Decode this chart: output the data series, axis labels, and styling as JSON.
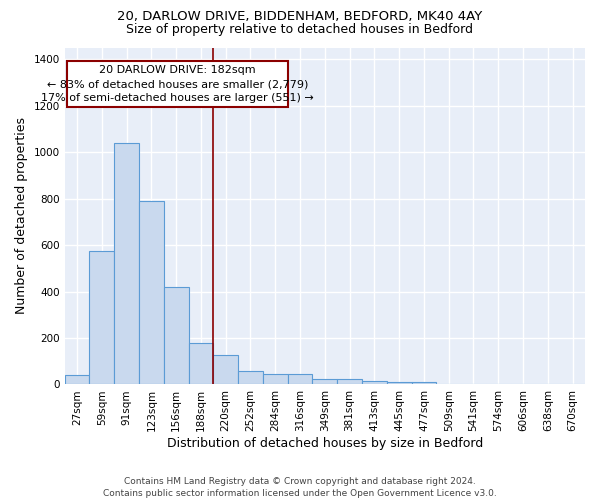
{
  "title_line1": "20, DARLOW DRIVE, BIDDENHAM, BEDFORD, MK40 4AY",
  "title_line2": "Size of property relative to detached houses in Bedford",
  "xlabel": "Distribution of detached houses by size in Bedford",
  "ylabel": "Number of detached properties",
  "categories": [
    "27sqm",
    "59sqm",
    "91sqm",
    "123sqm",
    "156sqm",
    "188sqm",
    "220sqm",
    "252sqm",
    "284sqm",
    "316sqm",
    "349sqm",
    "381sqm",
    "413sqm",
    "445sqm",
    "477sqm",
    "509sqm",
    "541sqm",
    "574sqm",
    "606sqm",
    "638sqm",
    "670sqm"
  ],
  "values": [
    42,
    575,
    1040,
    790,
    420,
    180,
    125,
    58,
    47,
    47,
    25,
    22,
    14,
    9,
    10,
    2,
    0,
    2,
    0,
    0,
    0
  ],
  "bar_color": "#c9d9ee",
  "bar_edge_color": "#5b9bd5",
  "vline_index": 5,
  "vline_color": "#8b0000",
  "annotation_line1": "20 DARLOW DRIVE: 182sqm",
  "annotation_line2": "← 83% of detached houses are smaller (2,779)",
  "annotation_line3": "17% of semi-detached houses are larger (551) →",
  "annotation_box_color": "white",
  "annotation_box_edge": "#8b0000",
  "ylim": [
    0,
    1450
  ],
  "yticks": [
    0,
    200,
    400,
    600,
    800,
    1000,
    1200,
    1400
  ],
  "bg_color": "#e8eef8",
  "grid_color": "white",
  "footer": "Contains HM Land Registry data © Crown copyright and database right 2024.\nContains public sector information licensed under the Open Government Licence v3.0.",
  "title_fontsize": 9.5,
  "subtitle_fontsize": 9,
  "tick_fontsize": 7.5,
  "label_fontsize": 9,
  "annotation_fontsize": 8,
  "footer_fontsize": 6.5
}
